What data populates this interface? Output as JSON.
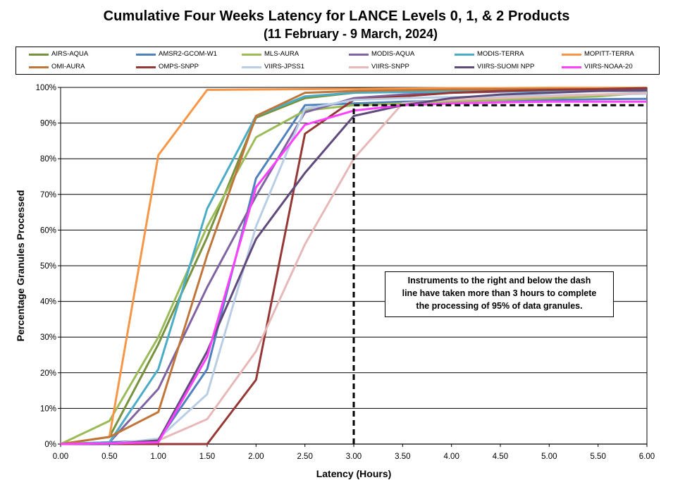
{
  "chart_data": {
    "type": "line",
    "title": "Cumulative Four Weeks Latency  for LANCE Levels 0, 1, & 2 Products",
    "subtitle": "(11  February   -  9  March,  2024)",
    "xlabel": "Latency (Hours)",
    "ylabel": "Percentage Granules Processed",
    "xlim": [
      0,
      6
    ],
    "ylim": [
      0,
      100
    ],
    "x_ticks": [
      "0.00",
      "0.50",
      "1.00",
      "1.50",
      "2.00",
      "2.50",
      "3.00",
      "3.50",
      "4.00",
      "4.50",
      "5.00",
      "5.50",
      "6.00"
    ],
    "y_ticks": [
      "0%",
      "10%",
      "20%",
      "30%",
      "40%",
      "50%",
      "60%",
      "70%",
      "80%",
      "90%",
      "100%"
    ],
    "grid": "horizontal",
    "legend_position": "top",
    "x": [
      0,
      0.5,
      1,
      1.5,
      2,
      2.5,
      3,
      3.5,
      4,
      4.5,
      5,
      5.5,
      6
    ],
    "series": [
      {
        "name": "AIRS-AQUA",
        "color": "#76923c",
        "values": [
          0,
          2,
          28,
          58,
          91.5,
          97,
          98.5,
          99,
          99.2,
          99.3,
          99.4,
          99.5,
          99.6
        ]
      },
      {
        "name": "AMSR2-GCOM-W1",
        "color": "#4f81bd",
        "values": [
          0,
          0.5,
          1,
          21,
          74.5,
          95,
          95.5,
          96,
          96.2,
          96.4,
          96.5,
          96.7,
          96.8
        ]
      },
      {
        "name": "MLS-AURA",
        "color": "#9bbb59",
        "values": [
          0,
          6.5,
          30,
          61,
          86,
          93.5,
          95,
          95.5,
          96,
          96.5,
          97,
          97.5,
          98.5
        ]
      },
      {
        "name": "MODIS-AQUA",
        "color": "#8064a2",
        "values": [
          0,
          0.5,
          15.5,
          44,
          69.5,
          93,
          97,
          98,
          98.5,
          98.8,
          99,
          99.2,
          99.5
        ]
      },
      {
        "name": "MODIS-TERRA",
        "color": "#4bacc6",
        "values": [
          0,
          0.5,
          21,
          66,
          92,
          97.5,
          98.5,
          98.7,
          98.8,
          98.9,
          99,
          99,
          99
        ]
      },
      {
        "name": "MOPITT-TERRA",
        "color": "#f79646",
        "values": [
          0,
          2,
          81,
          99.3,
          99.4,
          99.5,
          99.6,
          99.7,
          99.8,
          99.8,
          99.9,
          99.9,
          99.9
        ]
      },
      {
        "name": "OMI-AURA",
        "color": "#c0763b",
        "values": [
          0,
          2,
          9,
          53,
          92,
          98.5,
          99,
          99.2,
          99.4,
          99.5,
          99.5,
          99.5,
          99.5
        ]
      },
      {
        "name": "OMPS-SNPP",
        "color": "#953735",
        "values": [
          0,
          0,
          0,
          0,
          18,
          87,
          96.5,
          97.5,
          98.5,
          99,
          99.3,
          99.5,
          99.8
        ]
      },
      {
        "name": "VIIRS-JPSS1",
        "color": "#b9cde5",
        "values": [
          0,
          0,
          1.5,
          14,
          61,
          94,
          96.5,
          97,
          97.3,
          97.5,
          97.8,
          98,
          98.2
        ]
      },
      {
        "name": "VIIRS-SNPP",
        "color": "#e6b9b8",
        "values": [
          0,
          0,
          1,
          7,
          26,
          56,
          80,
          95.5,
          96.5,
          97,
          97.5,
          98,
          98.5
        ]
      },
      {
        "name": "VIIRS-SUOMI NPP",
        "color": "#604a7b",
        "values": [
          0,
          0,
          1,
          26,
          57.5,
          76,
          92,
          95,
          97,
          98,
          98.5,
          99,
          99.2
        ]
      },
      {
        "name": "VIIRS-NOAA-20",
        "color": "#ff40ff",
        "values": [
          0,
          0.2,
          0.5,
          24.5,
          72,
          89.5,
          93.5,
          95,
          95.5,
          95.8,
          96,
          96,
          96
        ]
      }
    ],
    "threshold_line": {
      "x": 3,
      "y": 95,
      "style": "dashed",
      "color": "#000000"
    },
    "annotation": {
      "lines": [
        "Instruments to the right and below the dash",
        "line have taken more than 3 hours to complete",
        "the processing of 95% of data granules."
      ]
    }
  }
}
